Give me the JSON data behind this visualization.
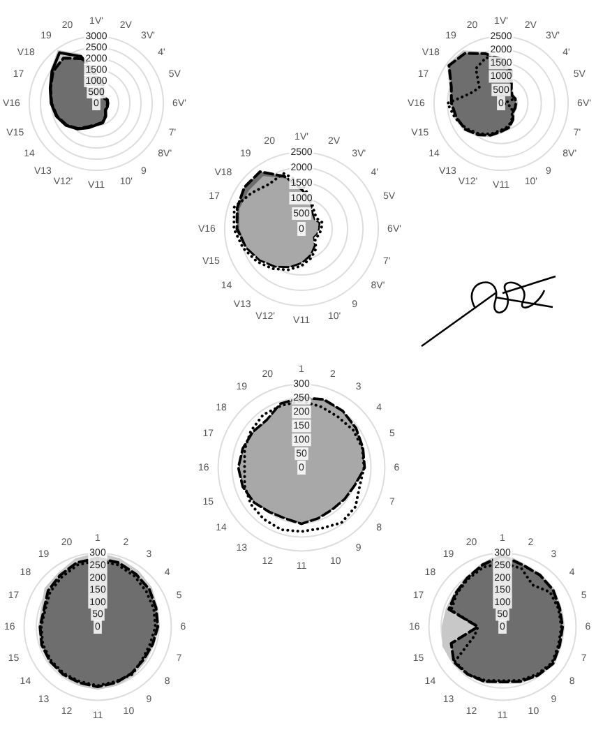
{
  "chart_data": [
    {
      "type": "radar",
      "categories": [
        "1V'",
        "2V",
        "3V'",
        "4'",
        "5V",
        "6V'",
        "7'",
        "8V'",
        "9",
        "10'",
        "V11",
        "V12'",
        "V13",
        "14",
        "V15",
        "V16",
        "17",
        "V18",
        "19",
        "20"
      ],
      "ylim": [
        0,
        3000
      ],
      "yticks": [
        0,
        500,
        1000,
        1500,
        2000,
        2500,
        3000
      ],
      "grid": true,
      "marker": "none",
      "series": [
        {
          "color": "#c8c8c8",
          "values": [
            1300,
            1000,
            500,
            450,
            550,
            550,
            550,
            550,
            750,
            950,
            1000,
            1200,
            1450,
            1700,
            1900,
            2050,
            2200,
            2500,
            2900,
            2300
          ]
        },
        {
          "color": "#6e6e6e",
          "line_style": "dashed",
          "values": [
            1200,
            900,
            450,
            400,
            500,
            500,
            500,
            500,
            700,
            900,
            950,
            1100,
            1400,
            1650,
            1850,
            2000,
            2150,
            2400,
            2500,
            2100
          ]
        },
        {
          "color": "#000000",
          "line_style": "solid",
          "values": [
            1250,
            950,
            480,
            420,
            520,
            520,
            520,
            520,
            720,
            920,
            970,
            1150,
            1420,
            1680,
            1880,
            2020,
            2170,
            2450,
            2800,
            2200
          ]
        }
      ]
    },
    {
      "type": "radar",
      "categories": [
        "1V'",
        "2V",
        "3V'",
        "4'",
        "5V",
        "6V'",
        "7'",
        "8V'",
        "9",
        "10'",
        "V11",
        "V12'",
        "V13",
        "14",
        "V15",
        "V16",
        "17",
        "V18",
        "19",
        "20"
      ],
      "ylim": [
        0,
        2500
      ],
      "yticks": [
        0,
        500,
        1000,
        1500,
        2000,
        2500
      ],
      "grid": true,
      "marker": "none",
      "series": [
        {
          "color": "#c8c8c8",
          "values": [
            1700,
            1300,
            700,
            550,
            600,
            600,
            600,
            600,
            800,
            1000,
            1100,
            1300,
            1500,
            1700,
            1800,
            1900,
            2000,
            2450,
            2400,
            2000
          ]
        },
        {
          "color": "#6e6e6e",
          "line_style": "dashed",
          "values": [
            1650,
            1250,
            650,
            500,
            550,
            550,
            550,
            550,
            750,
            950,
            1050,
            1250,
            1450,
            1650,
            1750,
            1850,
            1950,
            2400,
            2300,
            1950
          ]
        },
        {
          "color": "#000000",
          "line_style": "dotted",
          "values": [
            1500,
            1100,
            600,
            500,
            450,
            100,
            400,
            500,
            700,
            900,
            1000,
            1200,
            1400,
            1600,
            1800,
            2000,
            1200,
            1000,
            1600,
            1800
          ]
        }
      ]
    },
    {
      "type": "radar",
      "categories": [
        "1V'",
        "2V",
        "3V'",
        "4'",
        "5V",
        "6V'",
        "7'",
        "8V'",
        "9",
        "10'",
        "V11",
        "V12'",
        "V13",
        "14",
        "V15",
        "V16",
        "17",
        "V18",
        "19",
        "20"
      ],
      "ylim": [
        0,
        2500
      ],
      "yticks": [
        0,
        500,
        1000,
        1500,
        2000,
        2500
      ],
      "grid": true,
      "marker": "none",
      "series": [
        {
          "color": "#6e6e6e",
          "line_style": "dashed",
          "values": [
            1300,
            900,
            600,
            500,
            600,
            550,
            500,
            450,
            700,
            900,
            1100,
            1300,
            1500,
            1700,
            1900,
            2100,
            2200,
            2300,
            2300,
            1800
          ]
        },
        {
          "color": "#a8a8a8",
          "values": [
            1200,
            850,
            550,
            480,
            560,
            520,
            480,
            430,
            650,
            850,
            1050,
            1250,
            1450,
            1650,
            1850,
            2000,
            2100,
            2100,
            2100,
            1700
          ]
        },
        {
          "color": "#000000",
          "line_style": "dotted",
          "values": [
            1500,
            1000,
            700,
            600,
            700,
            650,
            600,
            550,
            800,
            1000,
            1200,
            1400,
            1600,
            1800,
            2000,
            2200,
            2300,
            2000,
            1800,
            1900
          ]
        }
      ]
    },
    {
      "type": "radar",
      "categories": [
        "1",
        "2",
        "3",
        "4",
        "5",
        "6",
        "7",
        "8",
        "9",
        "10",
        "11",
        "12",
        "13",
        "14",
        "15",
        "16",
        "17",
        "18",
        "19",
        "20"
      ],
      "ylim": [
        0,
        300
      ],
      "yticks": [
        0,
        50,
        100,
        150,
        200,
        250,
        300
      ],
      "grid": true,
      "marker": "none",
      "series": [
        {
          "color": "#6e6e6e",
          "line_style": "dashed",
          "values": [
            252,
            258,
            252,
            242,
            232,
            227,
            202,
            192,
            187,
            192,
            202,
            192,
            197,
            212,
            222,
            227,
            222,
            217,
            212,
            242
          ]
        },
        {
          "color": "#a8a8a8",
          "values": [
            245,
            250,
            245,
            235,
            225,
            220,
            195,
            185,
            180,
            185,
            195,
            185,
            190,
            205,
            215,
            220,
            215,
            210,
            205,
            235
          ]
        },
        {
          "color": "#000000",
          "line_style": "dotted",
          "values": [
            240,
            230,
            225,
            230,
            230,
            225,
            220,
            240,
            245,
            230,
            230,
            235,
            230,
            225,
            215,
            205,
            215,
            225,
            235,
            235
          ]
        }
      ]
    },
    {
      "type": "radar",
      "categories": [
        "1",
        "2",
        "3",
        "4",
        "5",
        "6",
        "7",
        "8",
        "9",
        "10",
        "11",
        "12",
        "13",
        "14",
        "15",
        "16",
        "17",
        "18",
        "19",
        "20"
      ],
      "ylim": [
        0,
        300
      ],
      "yticks": [
        0,
        50,
        100,
        150,
        200,
        250,
        300
      ],
      "grid": true,
      "marker": "none",
      "series": [
        {
          "color": "#c8c8c8",
          "values": [
            300,
            290,
            280,
            270,
            255,
            250,
            240,
            240,
            245,
            250,
            255,
            250,
            245,
            245,
            245,
            240,
            240,
            265,
            270,
            290
          ]
        },
        {
          "color": "#6e6e6e",
          "line_style": "dashed",
          "values": [
            280,
            275,
            265,
            260,
            250,
            245,
            235,
            230,
            235,
            240,
            245,
            240,
            240,
            240,
            240,
            235,
            230,
            250,
            260,
            275
          ]
        },
        {
          "color": "#000000",
          "line_style": "dotted",
          "values": [
            270,
            265,
            255,
            245,
            240,
            235,
            225,
            225,
            240,
            235,
            240,
            235,
            235,
            235,
            235,
            230,
            225,
            240,
            250,
            265
          ]
        }
      ]
    },
    {
      "type": "radar",
      "categories": [
        "1",
        "2",
        "3",
        "4",
        "5",
        "6",
        "7",
        "8",
        "9",
        "10",
        "11",
        "12",
        "13",
        "14",
        "15",
        "16",
        "17",
        "18",
        "19",
        "20"
      ],
      "ylim": [
        0,
        300
      ],
      "yticks": [
        0,
        50,
        100,
        150,
        200,
        250,
        300
      ],
      "grid": true,
      "marker": "none",
      "series": [
        {
          "color": "#c8c8c8",
          "values": [
            300,
            270,
            265,
            260,
            250,
            250,
            250,
            260,
            250,
            240,
            230,
            240,
            245,
            250,
            255,
            245,
            240,
            240,
            250,
            270
          ]
        },
        {
          "color": "#6e6e6e",
          "line_style": "dashed",
          "values": [
            290,
            265,
            260,
            255,
            245,
            245,
            245,
            255,
            245,
            235,
            225,
            235,
            240,
            245,
            220,
            100,
            230,
            235,
            245,
            265
          ]
        },
        {
          "color": "#000000",
          "line_style": "dotted",
          "values": [
            260,
            250,
            210,
            240,
            240,
            240,
            240,
            250,
            240,
            230,
            220,
            230,
            240,
            240,
            120,
            100,
            220,
            230,
            240,
            255
          ]
        }
      ]
    }
  ]
}
